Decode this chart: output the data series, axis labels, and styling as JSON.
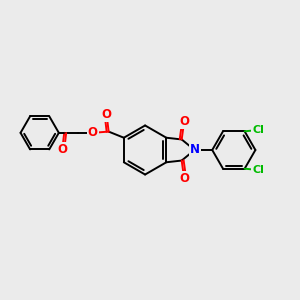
{
  "background_color": "#ebebeb",
  "bond_color": "#000000",
  "bond_width": 1.4,
  "atom_colors": {
    "O": "#ff0000",
    "N": "#0000ff",
    "Cl": "#00bb00",
    "C": "#000000"
  },
  "font_size_atom": 8.5,
  "font_size_cl": 8
}
